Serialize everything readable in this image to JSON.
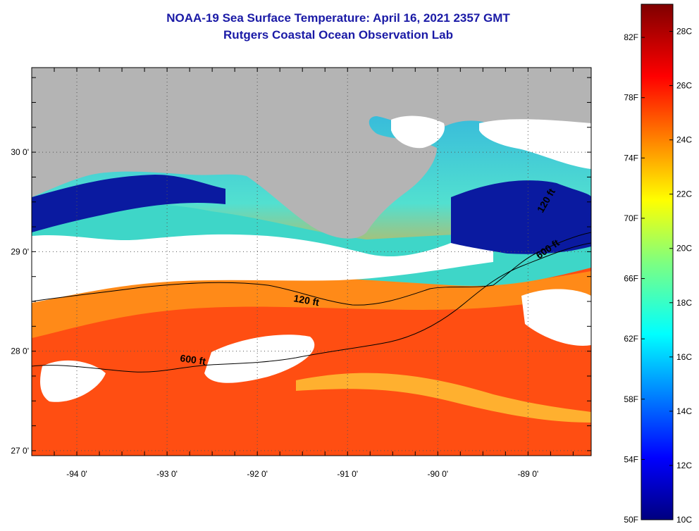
{
  "title": "NOAA-19 Sea Surface Temperature:  April 16, 2021 2357 GMT",
  "subtitle": "Rutgers Coastal Ocean Observation Lab",
  "map": {
    "lon_range": [
      -94.5,
      -88.3
    ],
    "lat_range": [
      26.95,
      30.85
    ],
    "lon_ticks": [
      {
        "value": -94,
        "label": "-94 0'"
      },
      {
        "value": -93,
        "label": "-93 0'"
      },
      {
        "value": -92,
        "label": "-92 0'"
      },
      {
        "value": -91,
        "label": "-91 0'"
      },
      {
        "value": -90,
        "label": "-90 0'"
      },
      {
        "value": -89,
        "label": "-89 0'"
      }
    ],
    "lat_ticks": [
      {
        "value": 30,
        "label": "30 0'"
      },
      {
        "value": 29,
        "label": "29 0'"
      },
      {
        "value": 28,
        "label": "28 0'"
      },
      {
        "value": 27,
        "label": "27 0'"
      }
    ],
    "contour_labels": [
      "120 ft",
      "600 ft",
      "120 ft",
      "600 ft"
    ],
    "colors": {
      "land": "#b4b4b4",
      "cloud": "#ffffff",
      "warm_water": "#ff4a10",
      "cold_water": "#0a1aa0"
    }
  },
  "colorbar": {
    "range_c": [
      10,
      29
    ],
    "celsius_labels": [
      "28C",
      "26C",
      "24C",
      "22C",
      "20C",
      "18C",
      "16C",
      "14C",
      "12C",
      "10C"
    ],
    "fahrenheit_labels": [
      "82F",
      "78F",
      "74F",
      "70F",
      "66F",
      "62F",
      "58F",
      "54F",
      "50F"
    ]
  }
}
